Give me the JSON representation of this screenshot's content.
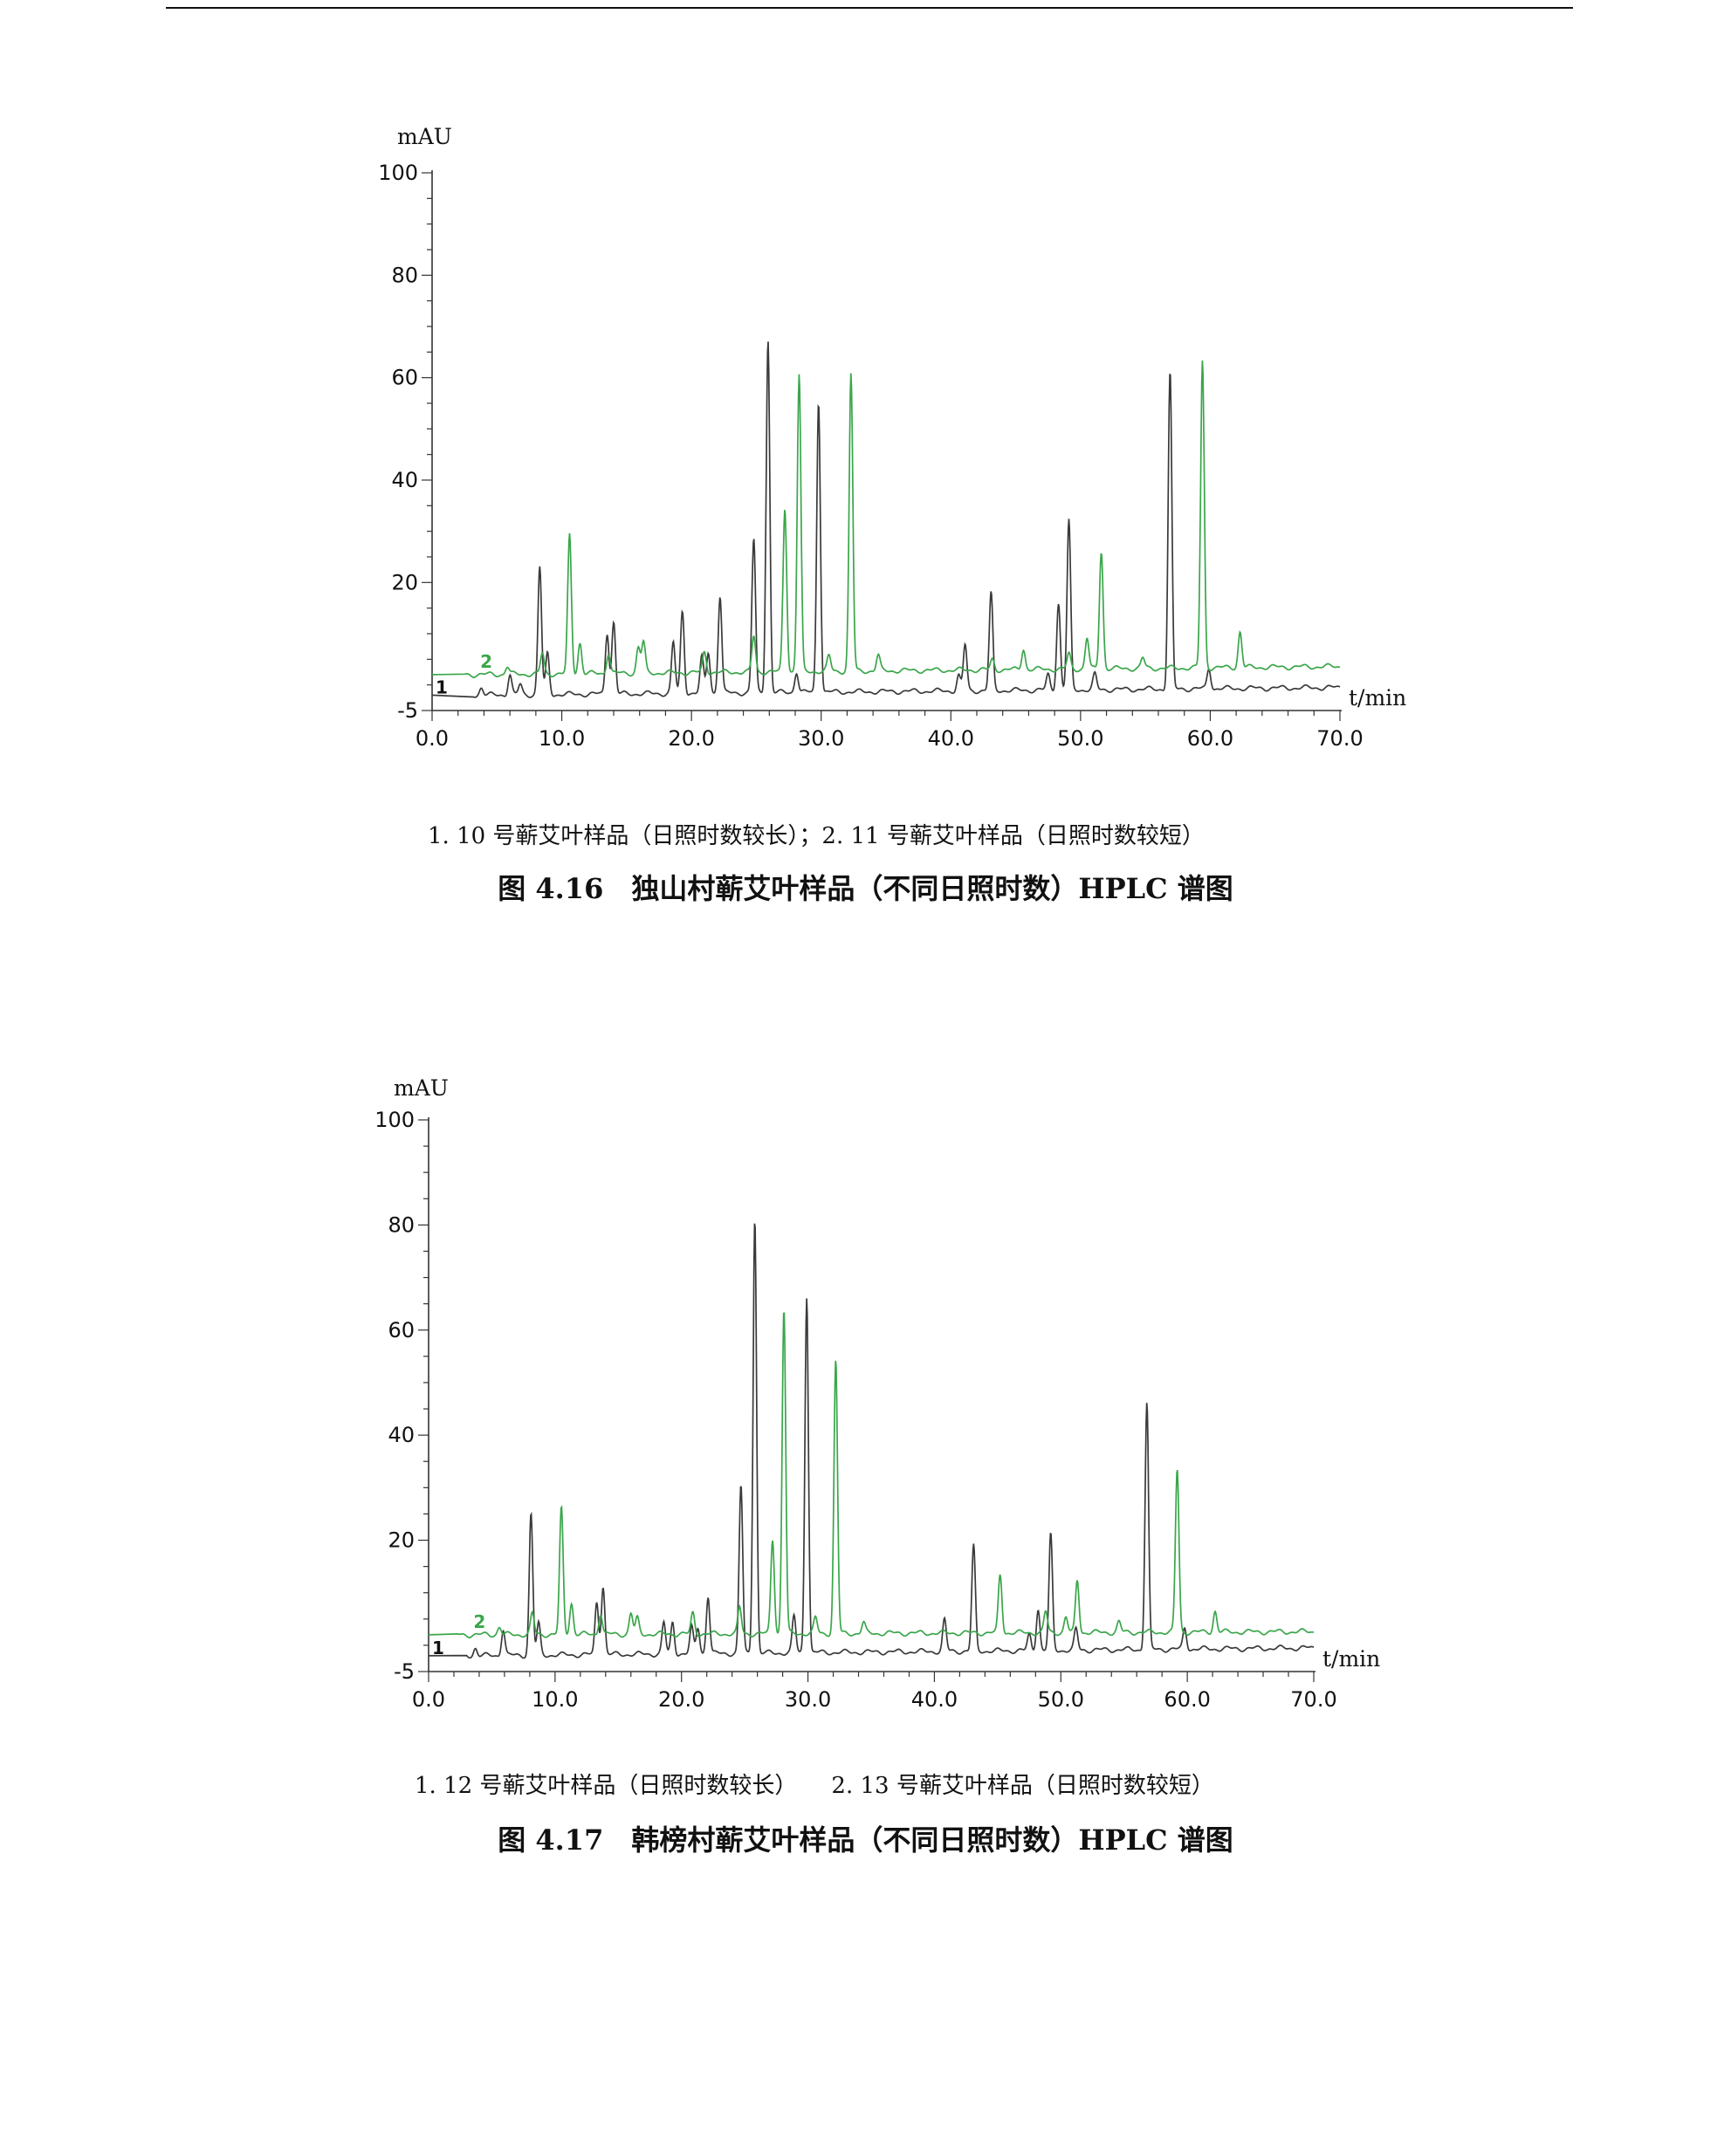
{
  "colors": {
    "trace_1": "#3a3a3a",
    "trace_2": "#3aa64a",
    "axis": "#333333"
  },
  "figures": [
    {
      "legend": "1. 10 号蕲艾叶样品（日照时数较长）；2. 11 号蕲艾叶样品（日照时数较短）",
      "caption": "图 4.16　独山村蕲艾叶样品（不同日照时数）HPLC 谱图"
    },
    {
      "legend": "1. 12 号蕲艾叶样品（日照时数较长）　　2. 13 号蕲艾叶样品（日照时数较短）",
      "caption": "图 4.17　韩榜村蕲艾叶样品（不同日照时数）HPLC 谱图"
    }
  ],
  "chart_data": [
    {
      "type": "line",
      "ylabel": "mAU",
      "xlabel": "t/min",
      "ylim": [
        -5,
        100
      ],
      "xlim": [
        0,
        70
      ],
      "y_ticks": [
        "100",
        "80",
        "60",
        "40",
        "20",
        "-5"
      ],
      "y_tick_values": [
        100,
        80,
        60,
        40,
        20,
        -5
      ],
      "x_ticks": [
        "0.0",
        "10.0",
        "20.0",
        "30.0",
        "40.0",
        "50.0",
        "60.0",
        "70.0"
      ],
      "x_tick_values": [
        0,
        10,
        20,
        30,
        40,
        50,
        60,
        70
      ],
      "series": [
        {
          "name": "1",
          "baseline_start": -2,
          "baseline_end": -0.5,
          "start_x": 3.2,
          "peaks": [
            [
              3.8,
              1.5
            ],
            [
              6,
              4
            ],
            [
              6.8,
              2
            ],
            [
              8.3,
              25
            ],
            [
              8.9,
              8
            ],
            [
              13.5,
              12
            ],
            [
              14,
              14
            ],
            [
              18.6,
              10
            ],
            [
              19.3,
              16
            ],
            [
              20.8,
              7
            ],
            [
              21.3,
              8
            ],
            [
              22.2,
              19
            ],
            [
              24.8,
              30
            ],
            [
              25.9,
              69
            ],
            [
              28.1,
              4
            ],
            [
              29.8,
              57
            ],
            [
              40.6,
              3
            ],
            [
              41.1,
              9
            ],
            [
              43.1,
              19
            ],
            [
              47.5,
              3
            ],
            [
              48.3,
              17
            ],
            [
              49.1,
              33
            ],
            [
              51.1,
              3
            ],
            [
              56.9,
              62
            ],
            [
              59.9,
              4
            ]
          ]
        },
        {
          "name": "2",
          "baseline_start": 2,
          "baseline_end": 3.6,
          "start_x": 2.5,
          "peaks": [
            [
              5.8,
              1.5
            ],
            [
              8.5,
              4
            ],
            [
              10.6,
              27
            ],
            [
              11.4,
              6
            ],
            [
              13.6,
              4
            ],
            [
              15.9,
              5
            ],
            [
              16.3,
              6
            ],
            [
              21,
              4
            ],
            [
              24.8,
              7
            ],
            [
              27.2,
              32
            ],
            [
              28.3,
              58
            ],
            [
              30.6,
              3
            ],
            [
              32.3,
              58
            ],
            [
              34.4,
              3
            ],
            [
              43.2,
              2
            ],
            [
              45.6,
              4
            ],
            [
              49.1,
              3
            ],
            [
              50.5,
              6
            ],
            [
              51.6,
              23
            ],
            [
              54.8,
              2
            ],
            [
              59.4,
              60
            ],
            [
              62.3,
              7
            ]
          ]
        }
      ]
    },
    {
      "type": "line",
      "ylabel": "mAU",
      "xlabel": "t/min",
      "ylim": [
        -5,
        100
      ],
      "xlim": [
        0,
        70
      ],
      "y_ticks": [
        "100",
        "80",
        "60",
        "40",
        "20",
        "-5"
      ],
      "y_tick_values": [
        100,
        80,
        60,
        40,
        20,
        -5
      ],
      "x_ticks": [
        "0.0",
        "10.0",
        "20.0",
        "30.0",
        "40.0",
        "50.0",
        "60.0",
        "70.0"
      ],
      "x_tick_values": [
        0,
        10,
        20,
        30,
        40,
        50,
        60,
        70
      ],
      "series": [
        {
          "name": "1",
          "baseline_start": -2,
          "baseline_end": -0.5,
          "start_x": 3.0,
          "peaks": [
            [
              3.7,
              1.5
            ],
            [
              5.9,
              5
            ],
            [
              8.1,
              27
            ],
            [
              8.7,
              6
            ],
            [
              13.3,
              10
            ],
            [
              13.8,
              13
            ],
            [
              18.6,
              6
            ],
            [
              19.3,
              6
            ],
            [
              20.8,
              5
            ],
            [
              21.3,
              5
            ],
            [
              22.1,
              11
            ],
            [
              24.7,
              32
            ],
            [
              25.8,
              83
            ],
            [
              28.9,
              7
            ],
            [
              29.9,
              68
            ],
            [
              40.8,
              6
            ],
            [
              43.1,
              20
            ],
            [
              47.5,
              3
            ],
            [
              48.2,
              8
            ],
            [
              49.2,
              22
            ],
            [
              51.2,
              4
            ],
            [
              56.8,
              47
            ],
            [
              59.8,
              4
            ]
          ]
        },
        {
          "name": "2",
          "baseline_start": 2,
          "baseline_end": 2.6,
          "start_x": 2.3,
          "peaks": [
            [
              5.6,
              1.5
            ],
            [
              8.2,
              4
            ],
            [
              10.5,
              24
            ],
            [
              11.3,
              6
            ],
            [
              13.6,
              4
            ],
            [
              16,
              4
            ],
            [
              16.5,
              3
            ],
            [
              20.9,
              4
            ],
            [
              24.6,
              5
            ],
            [
              27.2,
              18
            ],
            [
              28.1,
              62
            ],
            [
              30.6,
              3
            ],
            [
              32.2,
              52
            ],
            [
              34.4,
              2
            ],
            [
              45.2,
              11
            ],
            [
              48.8,
              4
            ],
            [
              50.4,
              3
            ],
            [
              51.3,
              10
            ],
            [
              54.6,
              2
            ],
            [
              59.2,
              31
            ],
            [
              62.2,
              4
            ]
          ]
        }
      ]
    }
  ]
}
